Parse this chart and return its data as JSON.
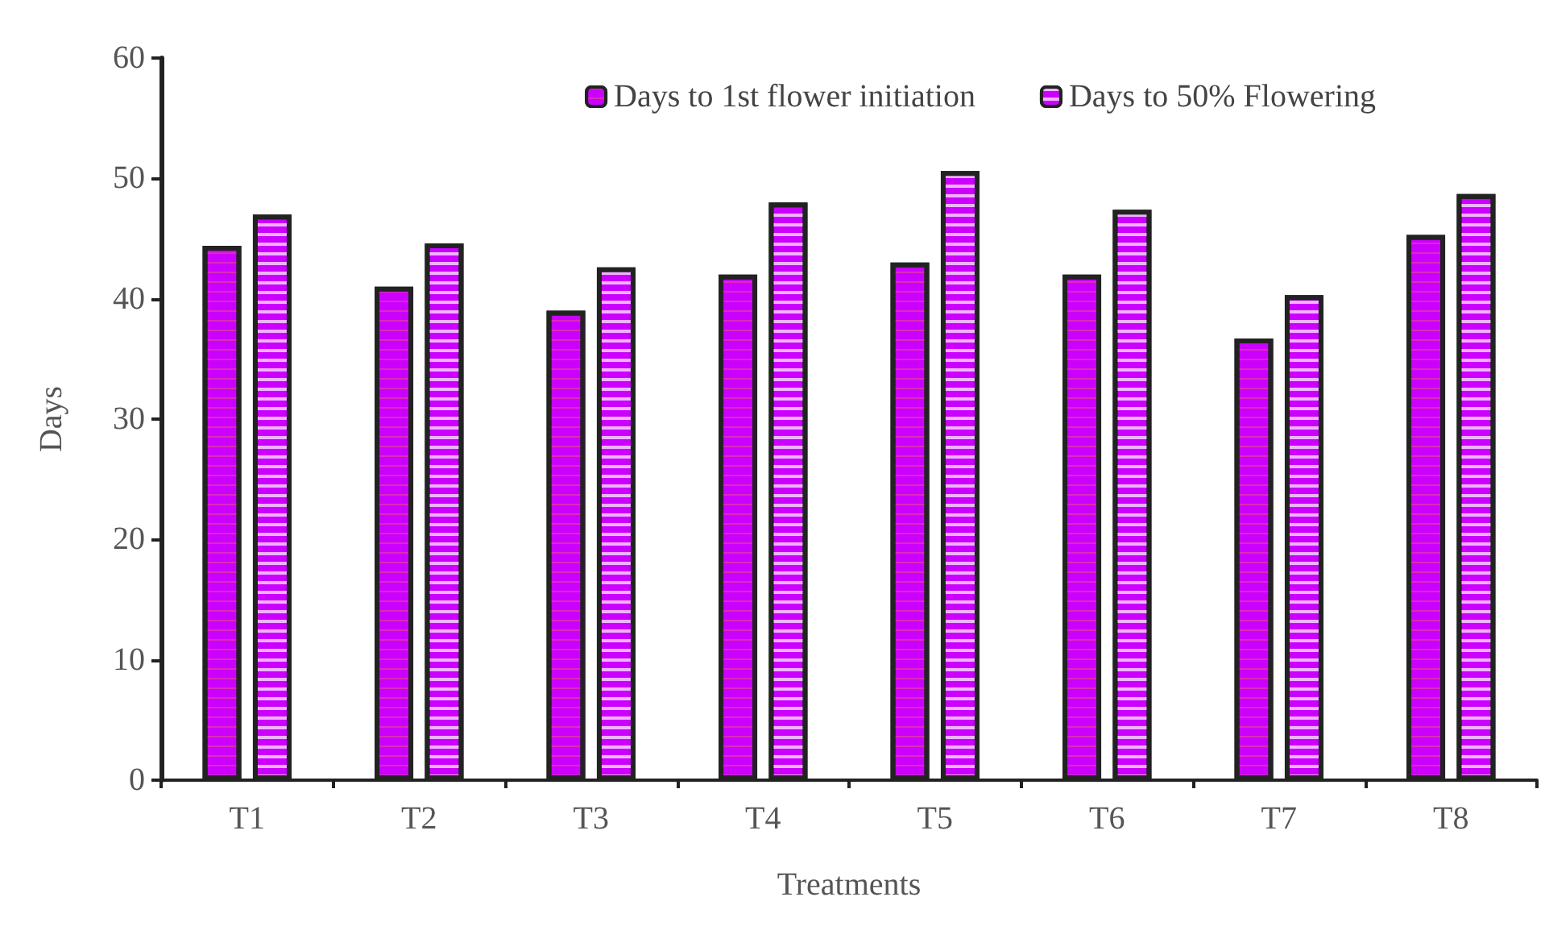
{
  "chart_data": {
    "type": "bar",
    "xlabel": "Treatments",
    "ylabel": "Days",
    "categories": [
      "T1",
      "T2",
      "T3",
      "T4",
      "T5",
      "T6",
      "T7",
      "T8"
    ],
    "series": [
      {
        "name": "Days to 1st flower initiation",
        "color": "#cc00ff",
        "values": [
          44.4,
          41.0,
          39.0,
          42.0,
          43.0,
          42.0,
          36.7,
          45.3
        ]
      },
      {
        "name": "Days to 50% Flowering",
        "color": "#cc00ff",
        "values": [
          47.0,
          44.6,
          42.6,
          48.0,
          50.6,
          47.4,
          40.3,
          48.7
        ]
      }
    ],
    "ylim": [
      0,
      60
    ],
    "yticks": [
      0,
      10,
      20,
      30,
      40,
      50,
      60
    ],
    "grid": false,
    "legend": "top right"
  }
}
